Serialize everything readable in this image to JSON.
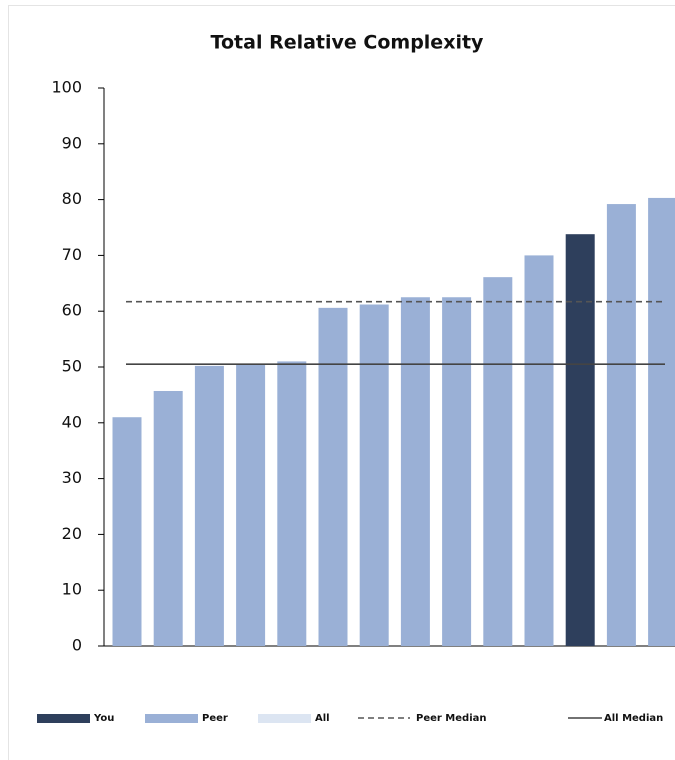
{
  "chart_data": {
    "type": "bar",
    "title": "Total Relative Complexity",
    "categories": [
      null,
      null,
      null,
      null,
      null,
      null,
      null,
      null,
      null,
      null,
      null,
      null,
      null,
      null
    ],
    "series": [
      {
        "name": "You",
        "color": "#2e3f5c",
        "values": [
          null,
          null,
          null,
          null,
          null,
          null,
          null,
          null,
          null,
          null,
          null,
          73.8,
          null,
          null
        ]
      },
      {
        "name": "Peer",
        "color": "#9ab0d6",
        "values": [
          41,
          45.7,
          50.2,
          50.5,
          51,
          60.6,
          61.2,
          62.5,
          62.5,
          66.1,
          70,
          null,
          79.2,
          80.3
        ]
      },
      {
        "name": "All",
        "color": "#dce5f2",
        "values": [
          null,
          null,
          null,
          null,
          null,
          null,
          null,
          null,
          null,
          null,
          null,
          null,
          null,
          null
        ]
      }
    ],
    "reference_lines": [
      {
        "name": "Peer Median",
        "value": 61.7,
        "style": "dashed",
        "color": "#555555"
      },
      {
        "name": "All Median",
        "value": 50.5,
        "style": "solid",
        "color": "#444444"
      }
    ],
    "ylim": [
      0,
      100
    ],
    "yticks": [
      0,
      10,
      20,
      30,
      40,
      50,
      60,
      70,
      80,
      90,
      100
    ],
    "grid": false
  }
}
